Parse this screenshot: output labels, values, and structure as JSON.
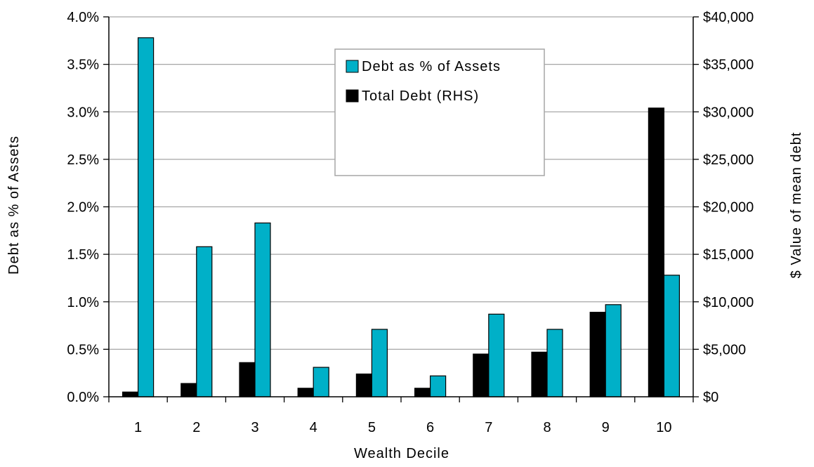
{
  "chart_data": {
    "type": "bar",
    "categories": [
      "1",
      "2",
      "3",
      "4",
      "5",
      "6",
      "7",
      "8",
      "9",
      "10"
    ],
    "series": [
      {
        "name": "Total Debt (RHS)",
        "axis": "right",
        "color": "#000000",
        "values": [
          500,
          1400,
          3600,
          900,
          2400,
          900,
          4500,
          4700,
          8900,
          30400
        ]
      },
      {
        "name": "Debt as % of Assets",
        "axis": "left",
        "color": "#00B0C8",
        "values": [
          3.78,
          1.58,
          1.83,
          0.31,
          0.71,
          0.22,
          0.87,
          0.71,
          0.97,
          1.28
        ]
      }
    ],
    "xlabel": "Wealth Decile",
    "ylabel": "Debt as % of Assets",
    "y2label": "$ Value of mean debt",
    "ylim": [
      0,
      4.0
    ],
    "y2lim": [
      0,
      40000
    ],
    "y_ticks": [
      "0.0%",
      "0.5%",
      "1.0%",
      "1.5%",
      "2.0%",
      "2.5%",
      "3.0%",
      "3.5%",
      "4.0%"
    ],
    "y2_ticks": [
      "$0",
      "$5,000",
      "$10,000",
      "$15,000",
      "$20,000",
      "$25,000",
      "$30,000",
      "$35,000",
      "$40,000"
    ],
    "legend": {
      "placement": "top-center",
      "entries": [
        "Debt as % of Assets",
        "Total Debt (RHS)"
      ]
    },
    "grid": true
  }
}
